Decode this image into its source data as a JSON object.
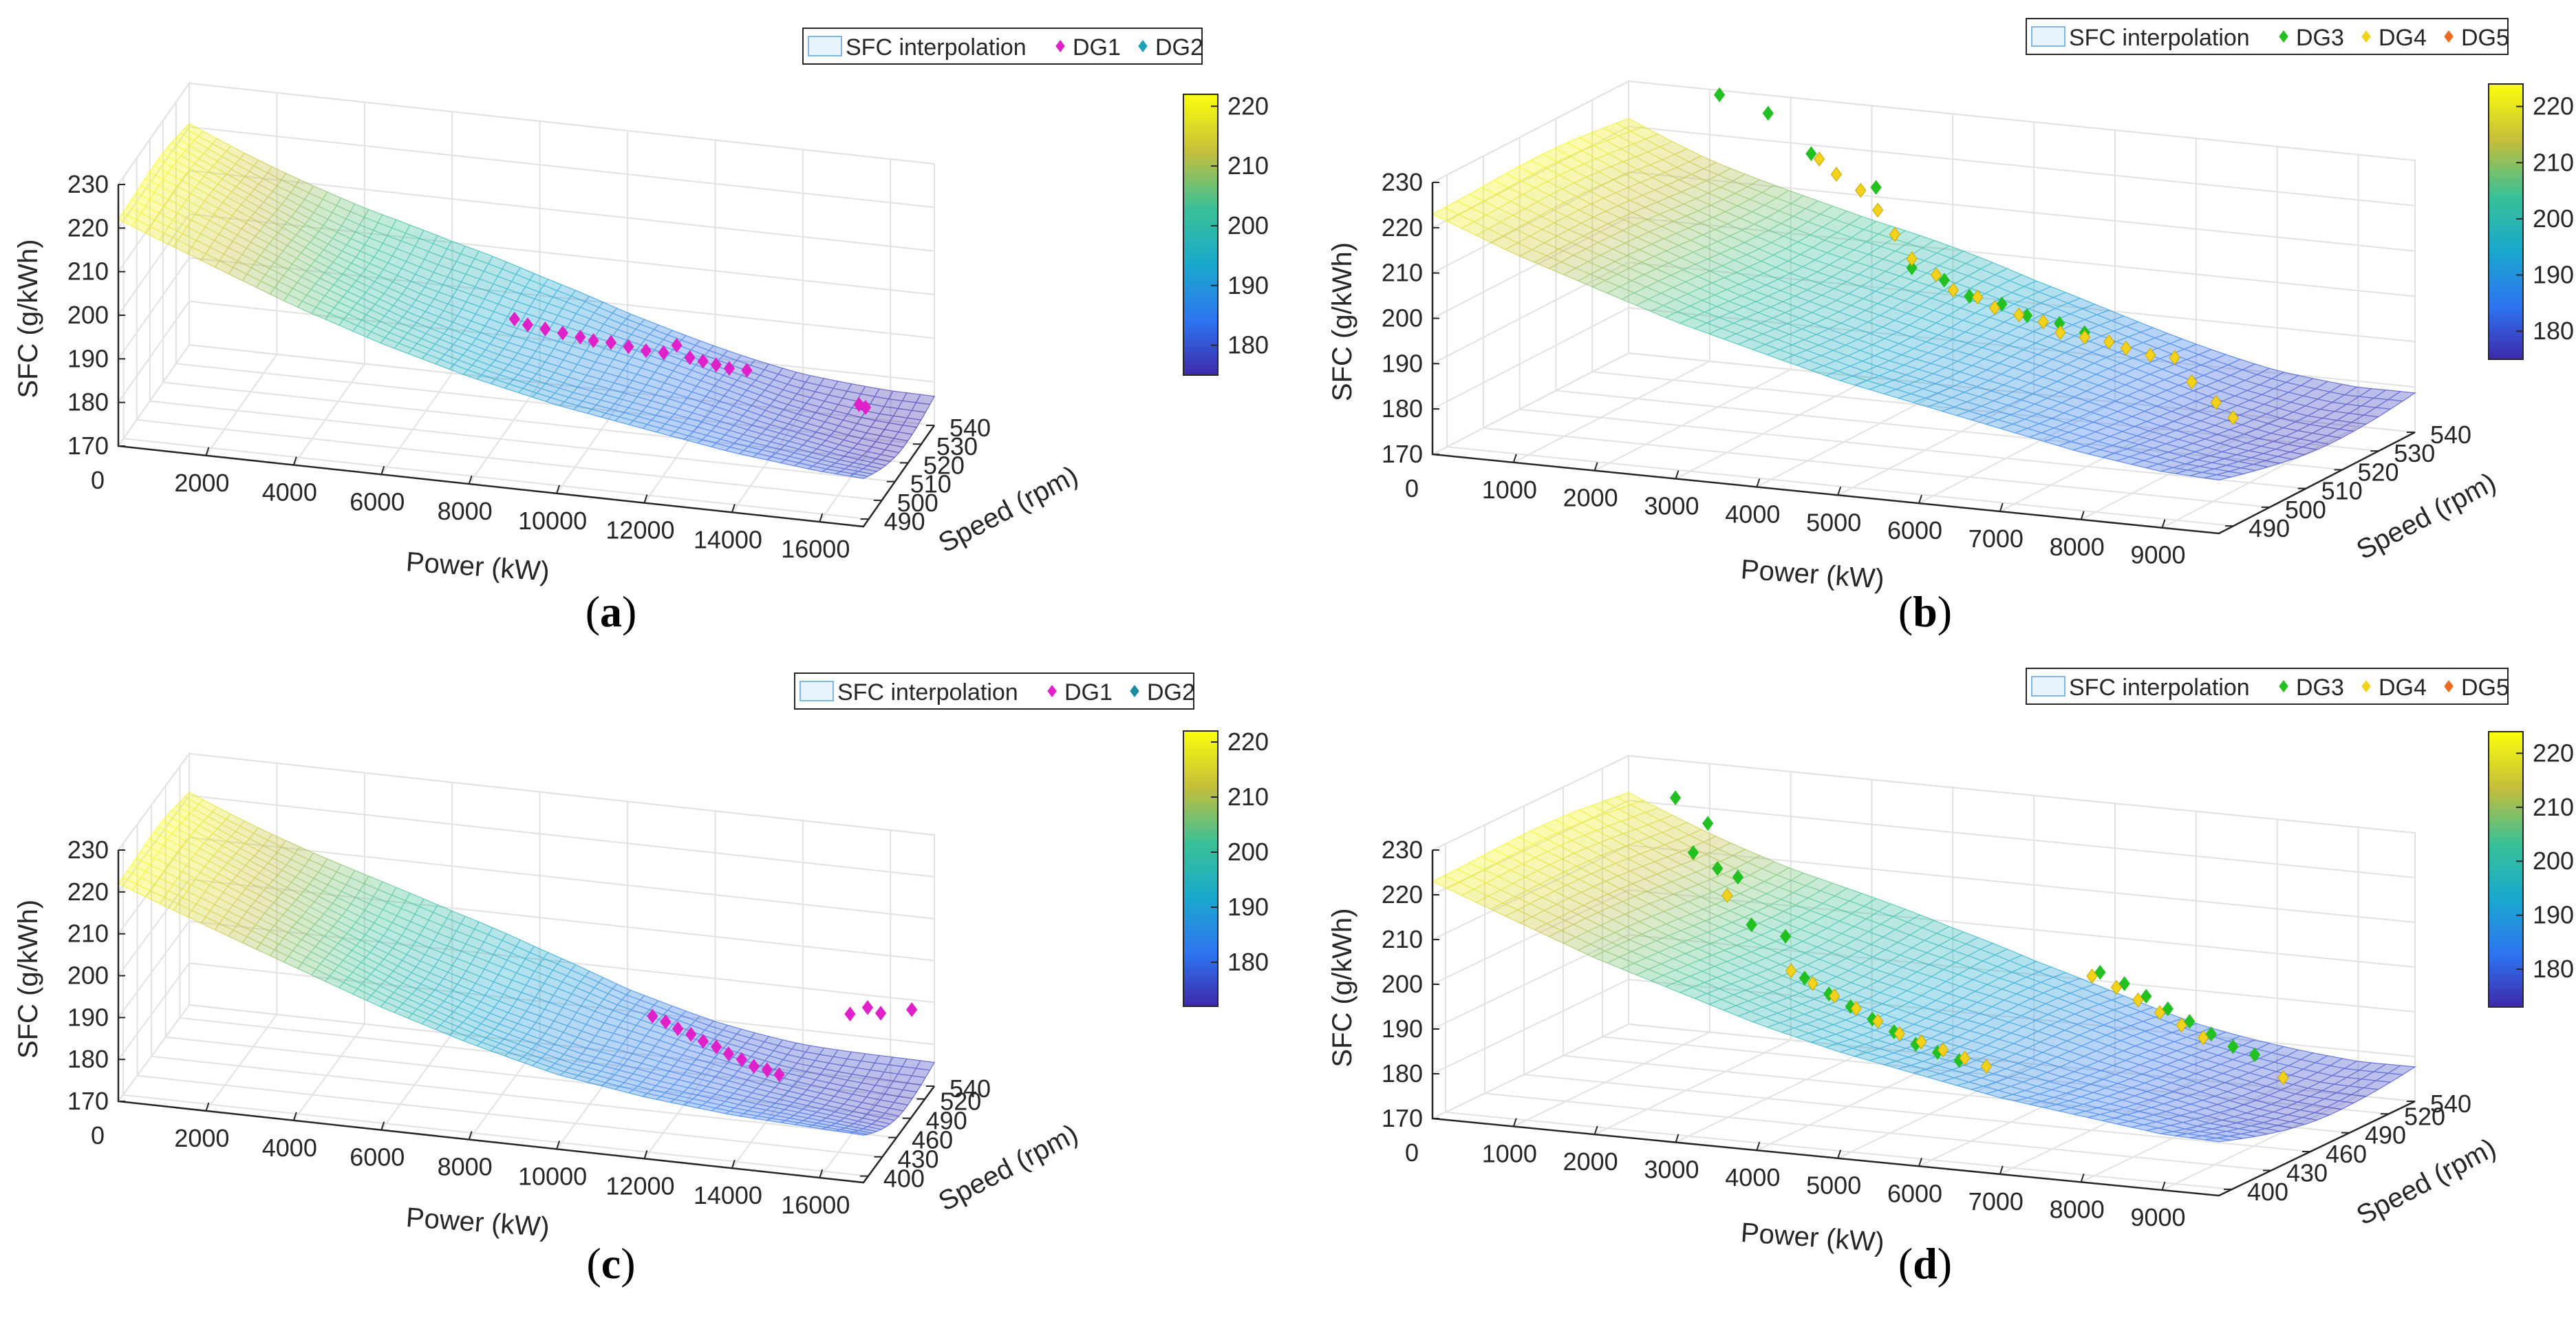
{
  "chart_data": [
    {
      "type": "surface",
      "caption": "(a)",
      "zlabel": "SFC (g/kWh)",
      "xlabel": "Power (kW)",
      "ylabel": "Speed (rpm)",
      "x_ticks": [
        "2000",
        "4000",
        "6000",
        "8000",
        "10000",
        "12000",
        "14000",
        "16000"
      ],
      "x_zero": "0",
      "y_ticks": [
        "490",
        "500",
        "510",
        "520",
        "530",
        "540"
      ],
      "z_ticks": [
        "170",
        "180",
        "190",
        "200",
        "210",
        "220",
        "230"
      ],
      "xlim": [
        0,
        17000
      ],
      "ylim": [
        486,
        540
      ],
      "zlim": [
        170,
        230
      ],
      "colorbar": {
        "ticks": [
          "180",
          "190",
          "200",
          "210",
          "220"
        ],
        "range": [
          175,
          222
        ]
      },
      "legend": {
        "placement": "top-right",
        "surface_label": "SFC interpolation",
        "series": [
          {
            "name": "DG1",
            "color": "#e020c8"
          },
          {
            "name": "DG2",
            "color": "#1aa3b8"
          }
        ]
      },
      "surface": {
        "x": [
          0,
          2000,
          4000,
          6000,
          8000,
          10000,
          12000,
          14000,
          16000,
          17000
        ],
        "sfc": [
          222,
          214,
          206,
          199,
          193,
          188,
          184,
          180,
          177,
          176
        ],
        "ripple": 4
      },
      "series": [
        {
          "name": "DG1",
          "color": "#e020c8",
          "points": [
            {
              "x": 8200,
              "y": 514,
              "z": 196
            },
            {
              "x": 8500,
              "y": 514,
              "z": 195
            },
            {
              "x": 8900,
              "y": 514,
              "z": 194.5
            },
            {
              "x": 9300,
              "y": 514,
              "z": 194
            },
            {
              "x": 9700,
              "y": 514,
              "z": 193.5
            },
            {
              "x": 10000,
              "y": 514,
              "z": 193
            },
            {
              "x": 10400,
              "y": 514,
              "z": 193
            },
            {
              "x": 10800,
              "y": 514,
              "z": 192.5
            },
            {
              "x": 11200,
              "y": 514,
              "z": 192
            },
            {
              "x": 11600,
              "y": 514,
              "z": 192
            },
            {
              "x": 11900,
              "y": 514,
              "z": 194
            },
            {
              "x": 12200,
              "y": 514,
              "z": 191.5
            },
            {
              "x": 12500,
              "y": 514,
              "z": 191
            },
            {
              "x": 12800,
              "y": 514,
              "z": 190.5
            },
            {
              "x": 13100,
              "y": 514,
              "z": 190
            },
            {
              "x": 13500,
              "y": 514,
              "z": 190
            },
            {
              "x": 16000,
              "y": 516,
              "z": 184
            },
            {
              "x": 16150,
              "y": 516,
              "z": 183.5
            }
          ]
        }
      ]
    },
    {
      "type": "surface",
      "caption": "(b)",
      "zlabel": "SFC (g/kWh)",
      "xlabel": "Power (kW)",
      "ylabel": "Speed (rpm)",
      "x_ticks": [
        "1000",
        "2000",
        "3000",
        "4000",
        "5000",
        "6000",
        "7000",
        "8000",
        "9000"
      ],
      "x_zero": "0",
      "y_ticks": [
        "490",
        "500",
        "510",
        "520",
        "530",
        "540"
      ],
      "z_ticks": [
        "170",
        "180",
        "190",
        "200",
        "210",
        "220",
        "230"
      ],
      "xlim": [
        0,
        9700
      ],
      "ylim": [
        486,
        540
      ],
      "zlim": [
        170,
        230
      ],
      "colorbar": {
        "ticks": [
          "180",
          "190",
          "200",
          "210",
          "220"
        ],
        "range": [
          175,
          224
        ]
      },
      "legend": {
        "placement": "top-right",
        "surface_label": "SFC interpolation",
        "series": [
          {
            "name": "DG3",
            "color": "#22c020"
          },
          {
            "name": "DG4",
            "color": "#f2d21a"
          },
          {
            "name": "DG5",
            "color": "#ee6a20"
          }
        ]
      },
      "surface": {
        "x": [
          0,
          1000,
          2000,
          3000,
          4000,
          5000,
          6000,
          7000,
          8000,
          9000,
          9700
        ],
        "sfc": [
          223,
          216,
          210,
          204,
          199,
          194,
          190,
          186,
          182,
          179,
          178
        ],
        "ripple": 3
      },
      "series": [
        {
          "name": "DG3",
          "color": "#22c020",
          "points": [
            {
              "x": 1300,
              "y": 536,
              "z": 231
            },
            {
              "x": 1900,
              "y": 536,
              "z": 228
            },
            {
              "x": 2700,
              "y": 530,
              "z": 223
            },
            {
              "x": 3500,
              "y": 530,
              "z": 217
            },
            {
              "x": 4300,
              "y": 522,
              "z": 204
            },
            {
              "x": 4700,
              "y": 522,
              "z": 202
            },
            {
              "x": 5100,
              "y": 520,
              "z": 200
            },
            {
              "x": 5500,
              "y": 520,
              "z": 199
            },
            {
              "x": 5900,
              "y": 518,
              "z": 198
            },
            {
              "x": 6300,
              "y": 518,
              "z": 197
            },
            {
              "x": 6700,
              "y": 516,
              "z": 196.5
            }
          ]
        },
        {
          "name": "DG4",
          "color": "#f2d21a",
          "points": [
            {
              "x": 2800,
              "y": 530,
              "z": 222
            },
            {
              "x": 3100,
              "y": 528,
              "z": 220
            },
            {
              "x": 3400,
              "y": 528,
              "z": 217
            },
            {
              "x": 3700,
              "y": 526,
              "z": 214
            },
            {
              "x": 4000,
              "y": 524,
              "z": 210
            },
            {
              "x": 4300,
              "y": 522,
              "z": 206
            },
            {
              "x": 4600,
              "y": 522,
              "z": 203
            },
            {
              "x": 4900,
              "y": 520,
              "z": 201
            },
            {
              "x": 5200,
              "y": 520,
              "z": 200
            },
            {
              "x": 5500,
              "y": 518,
              "z": 199
            },
            {
              "x": 5800,
              "y": 518,
              "z": 198
            },
            {
              "x": 6100,
              "y": 518,
              "z": 197
            },
            {
              "x": 6400,
              "y": 516,
              "z": 196
            },
            {
              "x": 6700,
              "y": 516,
              "z": 195.5
            },
            {
              "x": 7000,
              "y": 516,
              "z": 195
            },
            {
              "x": 7300,
              "y": 514,
              "z": 195
            },
            {
              "x": 7600,
              "y": 514,
              "z": 194
            },
            {
              "x": 7900,
              "y": 514,
              "z": 194
            },
            {
              "x": 8200,
              "y": 512,
              "z": 190
            },
            {
              "x": 8500,
              "y": 512,
              "z": 186
            },
            {
              "x": 8800,
              "y": 510,
              "z": 184
            }
          ]
        },
        {
          "name": "DG5",
          "color": "#ee6a20",
          "points": []
        }
      ]
    },
    {
      "type": "surface",
      "caption": "(c)",
      "zlabel": "SFC (g/kWh)",
      "xlabel": "Power (kW)",
      "ylabel": "Speed (rpm)",
      "x_ticks": [
        "2000",
        "4000",
        "6000",
        "8000",
        "10000",
        "12000",
        "14000",
        "16000"
      ],
      "x_zero": "0",
      "y_ticks": [
        "400",
        "430",
        "460",
        "490",
        "520",
        "540"
      ],
      "z_ticks": [
        "170",
        "180",
        "190",
        "200",
        "210",
        "220",
        "230"
      ],
      "xlim": [
        0,
        17000
      ],
      "ylim": [
        390,
        540
      ],
      "zlim": [
        170,
        230
      ],
      "colorbar": {
        "ticks": [
          "180",
          "190",
          "200",
          "210",
          "220"
        ],
        "range": [
          172,
          222
        ]
      },
      "legend": {
        "placement": "top-right",
        "surface_label": "SFC interpolation",
        "series": [
          {
            "name": "DG1",
            "color": "#e020c8"
          },
          {
            "name": "DG2",
            "color": "#1a8aa0"
          }
        ]
      },
      "surface": {
        "x": [
          0,
          2000,
          4000,
          6000,
          8000,
          10000,
          12000,
          14000,
          16000,
          17000
        ],
        "sfc": [
          222,
          214,
          206,
          198,
          191,
          185,
          181,
          178,
          176,
          175
        ],
        "ripple": 5
      },
      "series": [
        {
          "name": "DG1",
          "color": "#e020c8",
          "points": [
            {
              "x": 11000,
              "y": 500,
              "z": 186
            },
            {
              "x": 11300,
              "y": 500,
              "z": 185
            },
            {
              "x": 11600,
              "y": 498,
              "z": 184
            },
            {
              "x": 11900,
              "y": 498,
              "z": 183
            },
            {
              "x": 12200,
              "y": 496,
              "z": 182
            },
            {
              "x": 12500,
              "y": 496,
              "z": 181
            },
            {
              "x": 12800,
              "y": 494,
              "z": 180
            },
            {
              "x": 13100,
              "y": 494,
              "z": 179
            },
            {
              "x": 13400,
              "y": 492,
              "z": 178
            },
            {
              "x": 13700,
              "y": 492,
              "z": 177.5
            },
            {
              "x": 14000,
              "y": 490,
              "z": 177
            },
            {
              "x": 15400,
              "y": 510,
              "z": 190
            },
            {
              "x": 15800,
              "y": 510,
              "z": 192
            },
            {
              "x": 16100,
              "y": 510,
              "z": 191
            },
            {
              "x": 16700,
              "y": 520,
              "z": 191
            }
          ]
        }
      ]
    },
    {
      "type": "surface",
      "caption": "(d)",
      "zlabel": "SFC (g/kWh)",
      "xlabel": "Power (kW)",
      "ylabel": "Speed (rpm)",
      "x_ticks": [
        "1000",
        "2000",
        "3000",
        "4000",
        "5000",
        "6000",
        "7000",
        "8000",
        "9000"
      ],
      "x_zero": "0",
      "y_ticks": [
        "400",
        "430",
        "460",
        "490",
        "520",
        "540"
      ],
      "z_ticks": [
        "170",
        "180",
        "190",
        "200",
        "210",
        "220",
        "230"
      ],
      "xlim": [
        0,
        9700
      ],
      "ylim": [
        390,
        540
      ],
      "zlim": [
        170,
        230
      ],
      "colorbar": {
        "ticks": [
          "180",
          "190",
          "200",
          "210",
          "220"
        ],
        "range": [
          173,
          224
        ]
      },
      "legend": {
        "placement": "top-right",
        "surface_label": "SFC interpolation",
        "series": [
          {
            "name": "DG3",
            "color": "#22c020"
          },
          {
            "name": "DG4",
            "color": "#f2d21a"
          },
          {
            "name": "DG5",
            "color": "#ee6a20"
          }
        ]
      },
      "surface": {
        "x": [
          0,
          1000,
          2000,
          3000,
          4000,
          5000,
          6000,
          7000,
          8000,
          9000,
          9700
        ],
        "sfc": [
          223,
          216,
          209,
          203,
          197,
          192,
          188,
          184,
          181,
          178,
          177
        ],
        "ripple": 4
      },
      "series": [
        {
          "name": "DG3",
          "color": "#22c020",
          "points": [
            {
              "x": 900,
              "y": 520,
              "z": 225
            },
            {
              "x": 1300,
              "y": 520,
              "z": 220
            },
            {
              "x": 1200,
              "y": 515,
              "z": 214
            },
            {
              "x": 1500,
              "y": 515,
              "z": 211
            },
            {
              "x": 1800,
              "y": 512,
              "z": 210
            },
            {
              "x": 2000,
              "y": 510,
              "z": 200
            },
            {
              "x": 2500,
              "y": 505,
              "z": 199
            },
            {
              "x": 3300,
              "y": 470,
              "z": 196
            },
            {
              "x": 3600,
              "y": 470,
              "z": 193
            },
            {
              "x": 3900,
              "y": 468,
              "z": 191
            },
            {
              "x": 4200,
              "y": 466,
              "z": 189
            },
            {
              "x": 4500,
              "y": 464,
              "z": 187
            },
            {
              "x": 4800,
              "y": 462,
              "z": 185
            },
            {
              "x": 5100,
              "y": 460,
              "z": 184
            },
            {
              "x": 5400,
              "y": 458,
              "z": 183
            },
            {
              "x": 6300,
              "y": 510,
              "z": 197
            },
            {
              "x": 6600,
              "y": 510,
              "z": 195
            },
            {
              "x": 6900,
              "y": 508,
              "z": 193
            },
            {
              "x": 7200,
              "y": 506,
              "z": 191
            },
            {
              "x": 7500,
              "y": 504,
              "z": 189
            },
            {
              "x": 7800,
              "y": 502,
              "z": 187
            },
            {
              "x": 8100,
              "y": 500,
              "z": 185
            },
            {
              "x": 8400,
              "y": 498,
              "z": 184
            }
          ]
        },
        {
          "name": "DG4",
          "color": "#f2d21a",
          "points": [
            {
              "x": 1700,
              "y": 510,
              "z": 206
            },
            {
              "x": 3100,
              "y": 472,
              "z": 197
            },
            {
              "x": 3400,
              "y": 470,
              "z": 195
            },
            {
              "x": 3700,
              "y": 468,
              "z": 193
            },
            {
              "x": 4000,
              "y": 466,
              "z": 191
            },
            {
              "x": 4300,
              "y": 464,
              "z": 189
            },
            {
              "x": 4600,
              "y": 462,
              "z": 187
            },
            {
              "x": 4900,
              "y": 460,
              "z": 186
            },
            {
              "x": 5200,
              "y": 458,
              "z": 185
            },
            {
              "x": 5500,
              "y": 456,
              "z": 184
            },
            {
              "x": 5800,
              "y": 454,
              "z": 183
            },
            {
              "x": 6200,
              "y": 510,
              "z": 196
            },
            {
              "x": 6500,
              "y": 510,
              "z": 194
            },
            {
              "x": 6800,
              "y": 508,
              "z": 192
            },
            {
              "x": 7100,
              "y": 506,
              "z": 190
            },
            {
              "x": 7400,
              "y": 504,
              "z": 188
            },
            {
              "x": 7700,
              "y": 502,
              "z": 186
            },
            {
              "x": 8800,
              "y": 495,
              "z": 180
            }
          ]
        },
        {
          "name": "DG5",
          "color": "#ee6a20",
          "points": []
        }
      ]
    }
  ]
}
